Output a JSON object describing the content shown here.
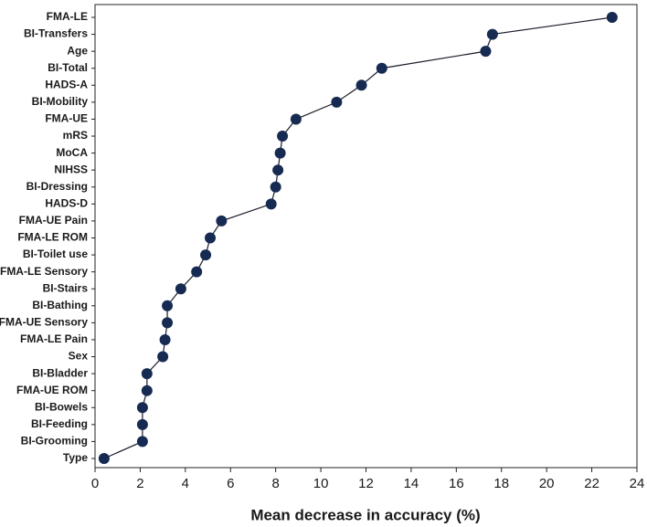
{
  "chart_data": {
    "type": "line",
    "orientation": "horizontal",
    "xlabel": "Mean decrease in accuracy (%)",
    "categories": [
      "FMA-LE",
      "BI-Transfers",
      "Age",
      "BI-Total",
      "HADS-A",
      "BI-Mobility",
      "FMA-UE",
      "mRS",
      "MoCA",
      "NIHSS",
      "BI-Dressing",
      "HADS-D",
      "FMA-UE Pain",
      "FMA-LE ROM",
      "BI-Toilet use",
      "FMA-LE Sensory",
      "BI-Stairs",
      "BI-Bathing",
      "FMA-UE Sensory",
      "FMA-LE Pain",
      "Sex",
      "BI-Bladder",
      "FMA-UE ROM",
      "BI-Bowels",
      "BI-Feeding",
      "BI-Grooming",
      "Type"
    ],
    "values": [
      22.9,
      17.6,
      17.3,
      12.7,
      11.8,
      10.7,
      8.9,
      8.3,
      8.2,
      8.1,
      8.0,
      7.8,
      5.6,
      5.1,
      4.9,
      4.5,
      3.8,
      3.2,
      3.2,
      3.1,
      3.0,
      2.3,
      2.3,
      2.1,
      2.1,
      2.1,
      0.4
    ],
    "color": "#162a52",
    "xlim": [
      0,
      24
    ],
    "xticks": [
      0,
      2,
      4,
      6,
      8,
      10,
      12,
      14,
      16,
      18,
      20,
      22,
      24
    ]
  }
}
